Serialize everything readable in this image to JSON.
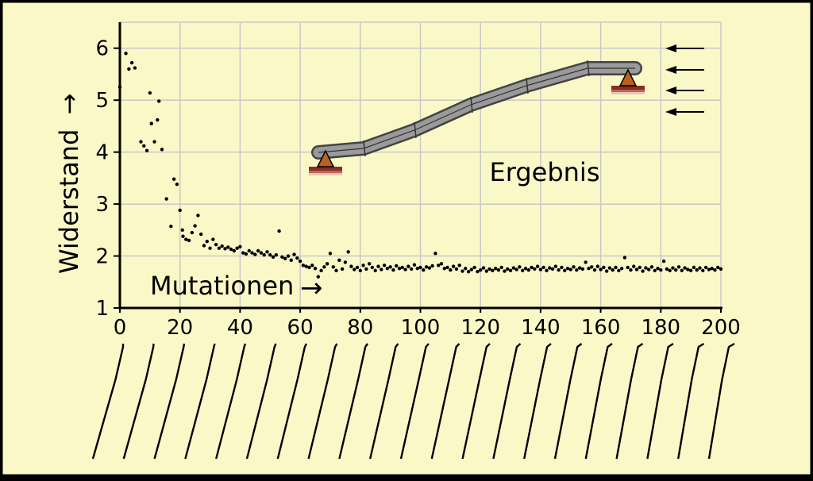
{
  "chart_data": {
    "type": "scatter",
    "ylabel": "Widerstand",
    "ylabel_arrow": "→",
    "xlabel": "Mutationen",
    "xlabel_arrow": "→",
    "annotation": "Ergebnis",
    "xlim": [
      0,
      200
    ],
    "ylim": [
      1,
      6.5
    ],
    "x_ticks": [
      0,
      20,
      40,
      60,
      80,
      100,
      120,
      140,
      160,
      180,
      200
    ],
    "y_ticks": [
      1,
      2,
      3,
      4,
      5,
      6
    ],
    "grid": true,
    "colors": {
      "background": "#fbf8c8",
      "grid": "#c8c8c8",
      "points": "#000000",
      "beam": "#9a9a9a",
      "support": "#b8621e",
      "ground": "#8c2c1c"
    },
    "series": [
      {
        "points": [
          [
            0,
            5.25
          ],
          [
            2,
            5.9
          ],
          [
            3,
            5.6
          ],
          [
            4,
            5.72
          ],
          [
            5,
            5.62
          ],
          [
            7,
            4.2
          ],
          [
            8,
            4.12
          ],
          [
            9,
            4.03
          ],
          [
            10,
            5.14
          ],
          [
            10.5,
            4.55
          ],
          [
            11.5,
            4.2
          ],
          [
            12.5,
            4.62
          ],
          [
            13,
            4.98
          ],
          [
            14,
            4.05
          ],
          [
            15.5,
            3.1
          ],
          [
            17,
            2.57
          ],
          [
            18,
            3.48
          ],
          [
            19,
            3.38
          ],
          [
            20,
            2.88
          ],
          [
            20.8,
            2.5
          ],
          [
            21,
            2.38
          ],
          [
            22,
            2.32
          ],
          [
            23,
            2.3
          ],
          [
            24,
            2.45
          ],
          [
            25,
            2.58
          ],
          [
            26,
            2.78
          ],
          [
            27,
            2.42
          ],
          [
            28,
            2.2
          ],
          [
            29,
            2.28
          ],
          [
            30,
            2.15
          ],
          [
            31,
            2.32
          ],
          [
            32,
            2.22
          ],
          [
            33,
            2.15
          ],
          [
            34,
            2.19
          ],
          [
            35,
            2.14
          ],
          [
            36,
            2.17
          ],
          [
            37,
            2.13
          ],
          [
            38,
            2.1
          ],
          [
            39,
            2.15
          ],
          [
            40,
            2.18
          ],
          [
            41,
            2.06
          ],
          [
            42,
            2.04
          ],
          [
            43,
            2.1
          ],
          [
            44,
            2.06
          ],
          [
            45,
            2.03
          ],
          [
            46,
            2.1
          ],
          [
            47,
            2.06
          ],
          [
            48,
            2.02
          ],
          [
            49,
            2.08
          ],
          [
            50,
            2.02
          ],
          [
            51,
            1.98
          ],
          [
            52,
            2.02
          ],
          [
            53,
            2.48
          ],
          [
            54,
            1.98
          ],
          [
            55,
            1.95
          ],
          [
            56,
            2.0
          ],
          [
            57,
            1.92
          ],
          [
            58,
            2.03
          ],
          [
            59,
            1.96
          ],
          [
            60,
            1.9
          ],
          [
            61,
            1.82
          ],
          [
            62,
            1.8
          ],
          [
            63,
            1.78
          ],
          [
            64,
            1.82
          ],
          [
            65,
            1.76
          ],
          [
            66,
            1.6
          ],
          [
            67,
            1.72
          ],
          [
            68,
            1.79
          ],
          [
            69,
            1.85
          ],
          [
            70,
            2.05
          ],
          [
            71,
            1.79
          ],
          [
            72,
            1.72
          ],
          [
            73,
            1.92
          ],
          [
            74,
            1.75
          ],
          [
            75,
            1.88
          ],
          [
            76,
            2.08
          ],
          [
            77,
            1.8
          ],
          [
            78,
            1.74
          ],
          [
            79,
            1.78
          ],
          [
            80,
            1.72
          ],
          [
            81,
            1.82
          ],
          [
            82,
            1.75
          ],
          [
            83,
            1.85
          ],
          [
            84,
            1.78
          ],
          [
            85,
            1.72
          ],
          [
            86,
            1.8
          ],
          [
            87,
            1.74
          ],
          [
            88,
            1.82
          ],
          [
            89,
            1.76
          ],
          [
            90,
            1.79
          ],
          [
            91,
            1.73
          ],
          [
            92,
            1.81
          ],
          [
            93,
            1.76
          ],
          [
            94,
            1.78
          ],
          [
            95,
            1.74
          ],
          [
            96,
            1.8
          ],
          [
            97,
            1.75
          ],
          [
            98,
            1.83
          ],
          [
            99,
            1.76
          ],
          [
            100,
            1.78
          ],
          [
            101,
            1.73
          ],
          [
            102,
            1.79
          ],
          [
            103,
            1.77
          ],
          [
            104,
            1.81
          ],
          [
            105,
            2.05
          ],
          [
            106,
            1.82
          ],
          [
            107,
            1.85
          ],
          [
            108,
            1.76
          ],
          [
            109,
            1.78
          ],
          [
            110,
            1.73
          ],
          [
            111,
            1.8
          ],
          [
            112,
            1.75
          ],
          [
            113,
            1.82
          ],
          [
            114,
            1.71
          ],
          [
            115,
            1.76
          ],
          [
            116,
            1.7
          ],
          [
            117,
            1.74
          ],
          [
            118,
            1.78
          ],
          [
            119,
            1.7
          ],
          [
            120,
            1.73
          ],
          [
            121,
            1.77
          ],
          [
            122,
            1.71
          ],
          [
            123,
            1.75
          ],
          [
            124,
            1.72
          ],
          [
            125,
            1.76
          ],
          [
            126,
            1.73
          ],
          [
            127,
            1.78
          ],
          [
            128,
            1.71
          ],
          [
            129,
            1.75
          ],
          [
            130,
            1.72
          ],
          [
            131,
            1.77
          ],
          [
            132,
            1.74
          ],
          [
            133,
            1.79
          ],
          [
            134,
            1.72
          ],
          [
            135,
            1.76
          ],
          [
            136,
            1.73
          ],
          [
            137,
            1.78
          ],
          [
            138,
            1.75
          ],
          [
            139,
            1.8
          ],
          [
            140,
            1.74
          ],
          [
            141,
            1.78
          ],
          [
            142,
            1.72
          ],
          [
            143,
            1.77
          ],
          [
            144,
            1.75
          ],
          [
            145,
            1.8
          ],
          [
            146,
            1.73
          ],
          [
            147,
            1.78
          ],
          [
            148,
            1.72
          ],
          [
            149,
            1.76
          ],
          [
            150,
            1.74
          ],
          [
            151,
            1.79
          ],
          [
            152,
            1.73
          ],
          [
            153,
            1.77
          ],
          [
            154,
            1.75
          ],
          [
            155,
            1.88
          ],
          [
            156,
            1.76
          ],
          [
            157,
            1.79
          ],
          [
            158,
            1.73
          ],
          [
            159,
            1.8
          ],
          [
            160,
            1.74
          ],
          [
            161,
            1.78
          ],
          [
            162,
            1.71
          ],
          [
            163,
            1.77
          ],
          [
            164,
            1.73
          ],
          [
            165,
            1.78
          ],
          [
            166,
            1.72
          ],
          [
            167,
            1.76
          ],
          [
            168,
            1.97
          ],
          [
            169,
            1.78
          ],
          [
            170,
            1.73
          ],
          [
            171,
            1.8
          ],
          [
            172,
            1.74
          ],
          [
            173,
            1.78
          ],
          [
            174,
            1.71
          ],
          [
            175,
            1.77
          ],
          [
            176,
            1.74
          ],
          [
            177,
            1.79
          ],
          [
            178,
            1.72
          ],
          [
            179,
            1.76
          ],
          [
            180,
            1.73
          ],
          [
            181,
            1.9
          ],
          [
            182,
            1.75
          ],
          [
            183,
            1.72
          ],
          [
            184,
            1.77
          ],
          [
            185,
            1.73
          ],
          [
            186,
            1.79
          ],
          [
            187,
            1.72
          ],
          [
            188,
            1.77
          ],
          [
            189,
            1.74
          ],
          [
            190,
            1.72
          ],
          [
            191,
            1.78
          ],
          [
            192,
            1.73
          ],
          [
            193,
            1.77
          ],
          [
            194,
            1.72
          ],
          [
            195,
            1.78
          ],
          [
            196,
            1.74
          ],
          [
            197,
            1.76
          ],
          [
            198,
            1.73
          ],
          [
            199,
            1.78
          ],
          [
            200,
            1.75
          ]
        ]
      }
    ]
  }
}
